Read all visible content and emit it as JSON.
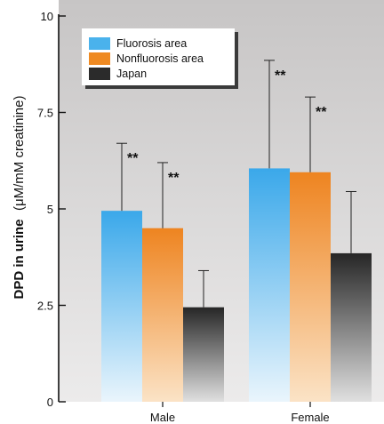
{
  "chart_data": {
    "type": "bar",
    "categories": [
      "Male",
      "Female"
    ],
    "series": [
      {
        "name": "Fluorosis area",
        "values": [
          4.95,
          6.05
        ],
        "error": [
          1.75,
          2.8
        ],
        "significance": [
          "**",
          "**"
        ]
      },
      {
        "name": "Nonfluorosis area",
        "values": [
          4.5,
          5.95
        ],
        "error": [
          1.7,
          1.95
        ],
        "significance": [
          "**",
          "**"
        ]
      },
      {
        "name": "Japan",
        "values": [
          2.45,
          3.85
        ],
        "error": [
          0.95,
          1.6
        ],
        "significance": [
          "",
          ""
        ]
      }
    ],
    "ylabel_main": "DPD in urine",
    "ylabel_unit": "(μM/mM creatinine)",
    "ylim": [
      0,
      10
    ],
    "yticks": [
      0,
      2.5,
      5,
      7.5,
      10
    ],
    "ytick_labels": [
      "0",
      "2.5",
      "5",
      "7.5",
      "10"
    ],
    "legend_position": "top-left",
    "colors": {
      "background": "#d8d6d6",
      "series": [
        "#4ab2ec",
        "#ef8a22",
        "#2b2b2b"
      ],
      "legend_box": "#ffffff"
    }
  }
}
